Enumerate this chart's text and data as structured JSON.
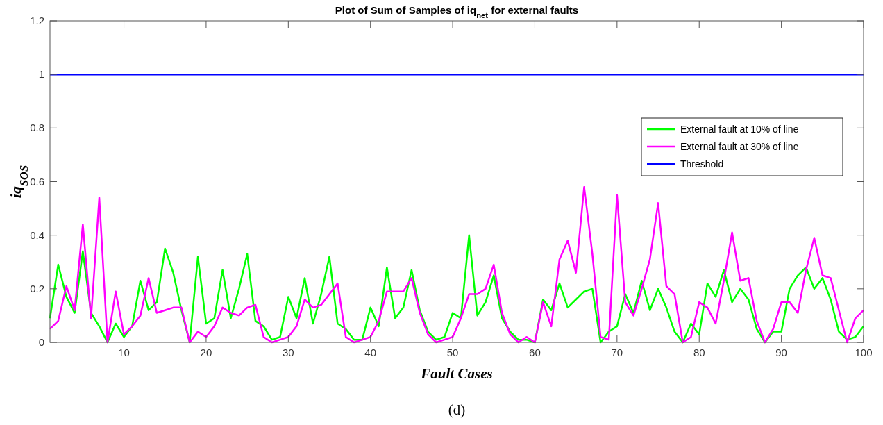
{
  "chart_data": {
    "type": "line",
    "title": "Plot of Sum of Samples of iq$_{net}$ for external faults",
    "xlabel": "Fault Cases",
    "ylabel": "iq$_{SOS}$",
    "annotations": [
      "(d)"
    ],
    "x": [
      1,
      2,
      3,
      4,
      5,
      6,
      7,
      8,
      9,
      10,
      11,
      12,
      13,
      14,
      15,
      16,
      17,
      18,
      19,
      20,
      21,
      22,
      23,
      24,
      25,
      26,
      27,
      28,
      29,
      30,
      31,
      32,
      33,
      34,
      35,
      36,
      37,
      38,
      39,
      40,
      41,
      42,
      43,
      44,
      45,
      46,
      47,
      48,
      49,
      50,
      51,
      52,
      53,
      54,
      55,
      56,
      57,
      58,
      59,
      60,
      61,
      62,
      63,
      64,
      65,
      66,
      67,
      68,
      69,
      70,
      71,
      72,
      73,
      74,
      75,
      76,
      77,
      78,
      79,
      80,
      81,
      82,
      83,
      84,
      85,
      86,
      87,
      88,
      89,
      90,
      91,
      92,
      93,
      94,
      95,
      96,
      97,
      98,
      99,
      100
    ],
    "series": [
      {
        "name": "External fault at 10% of line",
        "color": "#00ff00",
        "values": [
          0.09,
          0.29,
          0.17,
          0.11,
          0.34,
          0.11,
          0.06,
          0.0,
          0.07,
          0.02,
          0.06,
          0.23,
          0.12,
          0.15,
          0.35,
          0.26,
          0.12,
          0.0,
          0.32,
          0.07,
          0.09,
          0.27,
          0.09,
          0.2,
          0.33,
          0.08,
          0.06,
          0.01,
          0.02,
          0.17,
          0.09,
          0.24,
          0.07,
          0.18,
          0.32,
          0.07,
          0.05,
          0.01,
          0.01,
          0.13,
          0.06,
          0.28,
          0.09,
          0.13,
          0.27,
          0.12,
          0.04,
          0.01,
          0.02,
          0.11,
          0.09,
          0.4,
          0.1,
          0.15,
          0.25,
          0.09,
          0.04,
          0.01,
          0.01,
          0.0,
          0.16,
          0.12,
          0.22,
          0.13,
          0.16,
          0.19,
          0.2,
          0.0,
          0.04,
          0.06,
          0.18,
          0.11,
          0.23,
          0.12,
          0.2,
          0.13,
          0.04,
          0.0,
          0.07,
          0.03,
          0.22,
          0.17,
          0.27,
          0.15,
          0.2,
          0.16,
          0.05,
          0.0,
          0.04,
          0.04,
          0.2,
          0.25,
          0.28,
          0.2,
          0.24,
          0.16,
          0.04,
          0.01,
          0.02,
          0.06
        ]
      },
      {
        "name": "External fault at 30% of line",
        "color": "#ff00ff",
        "values": [
          0.05,
          0.08,
          0.21,
          0.12,
          0.44,
          0.09,
          0.54,
          0.0,
          0.19,
          0.03,
          0.06,
          0.1,
          0.24,
          0.11,
          0.12,
          0.13,
          0.13,
          0.0,
          0.04,
          0.02,
          0.06,
          0.13,
          0.11,
          0.1,
          0.13,
          0.14,
          0.02,
          0.0,
          0.01,
          0.02,
          0.06,
          0.16,
          0.13,
          0.14,
          0.18,
          0.22,
          0.02,
          0.0,
          0.01,
          0.02,
          0.08,
          0.19,
          0.19,
          0.19,
          0.24,
          0.11,
          0.03,
          0.0,
          0.01,
          0.02,
          0.09,
          0.18,
          0.18,
          0.2,
          0.29,
          0.11,
          0.03,
          0.0,
          0.02,
          0.0,
          0.15,
          0.06,
          0.31,
          0.38,
          0.26,
          0.58,
          0.33,
          0.02,
          0.01,
          0.55,
          0.15,
          0.1,
          0.2,
          0.31,
          0.52,
          0.21,
          0.18,
          0.0,
          0.02,
          0.15,
          0.13,
          0.07,
          0.23,
          0.41,
          0.23,
          0.24,
          0.08,
          0.0,
          0.05,
          0.15,
          0.15,
          0.11,
          0.27,
          0.39,
          0.25,
          0.24,
          0.12,
          0.0,
          0.09,
          0.12
        ]
      },
      {
        "name": "Threshold",
        "color": "#0000ff",
        "x": [
          1,
          100
        ],
        "values": [
          1,
          1
        ]
      }
    ],
    "xlim": [
      1,
      100
    ],
    "xticks": [
      10,
      20,
      30,
      40,
      50,
      60,
      70,
      80,
      90,
      100
    ],
    "ylim": [
      0,
      1.2
    ],
    "yticks": [
      0,
      0.2,
      0.4,
      0.6,
      0.8,
      1,
      1.2
    ],
    "legend": "top right",
    "grid": false
  }
}
